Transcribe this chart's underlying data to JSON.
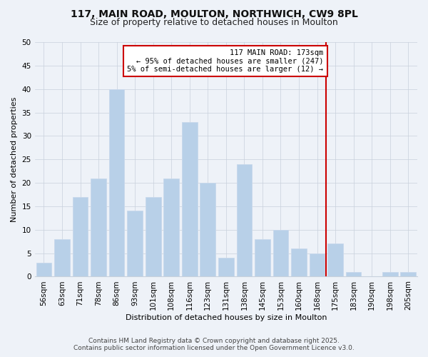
{
  "title1": "117, MAIN ROAD, MOULTON, NORTHWICH, CW9 8PL",
  "title2": "Size of property relative to detached houses in Moulton",
  "xlabel": "Distribution of detached houses by size in Moulton",
  "ylabel": "Number of detached properties",
  "categories": [
    "56sqm",
    "63sqm",
    "71sqm",
    "78sqm",
    "86sqm",
    "93sqm",
    "101sqm",
    "108sqm",
    "116sqm",
    "123sqm",
    "131sqm",
    "138sqm",
    "145sqm",
    "153sqm",
    "160sqm",
    "168sqm",
    "175sqm",
    "183sqm",
    "190sqm",
    "198sqm",
    "205sqm"
  ],
  "values": [
    3,
    8,
    17,
    21,
    40,
    14,
    17,
    21,
    33,
    20,
    4,
    24,
    8,
    10,
    6,
    5,
    7,
    1,
    0,
    1,
    1
  ],
  "bar_color": "#b8d0e8",
  "bar_edge_color": "#c8d8ec",
  "grid_color": "#c8d0dc",
  "background_color": "#eef2f8",
  "property_line_index": 16,
  "property_line_color": "#cc0000",
  "annotation_text": "117 MAIN ROAD: 173sqm\n← 95% of detached houses are smaller (247)\n5% of semi-detached houses are larger (12) →",
  "annotation_box_color": "#ffffff",
  "annotation_edge_color": "#cc0000",
  "ylim": [
    0,
    50
  ],
  "yticks": [
    0,
    5,
    10,
    15,
    20,
    25,
    30,
    35,
    40,
    45,
    50
  ],
  "footer": "Contains HM Land Registry data © Crown copyright and database right 2025.\nContains public sector information licensed under the Open Government Licence v3.0.",
  "title1_fontsize": 10,
  "title2_fontsize": 9,
  "axis_label_fontsize": 8,
  "tick_fontsize": 7.5,
  "annotation_fontsize": 7.5,
  "footer_fontsize": 6.5
}
